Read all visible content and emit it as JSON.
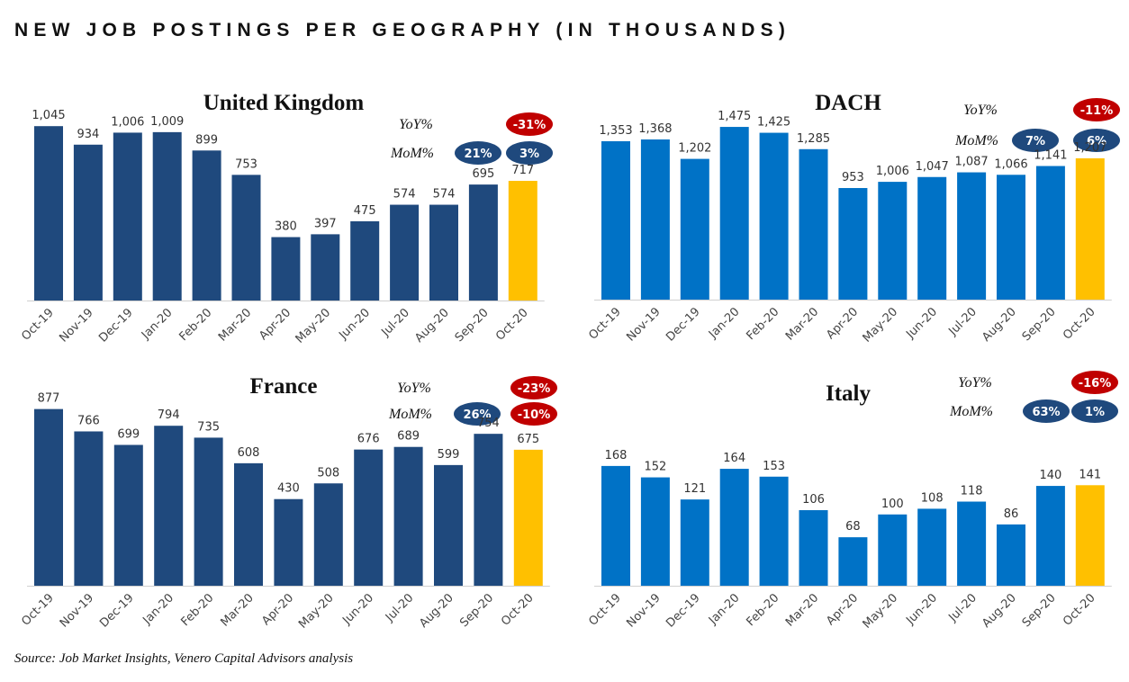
{
  "title": "NEW JOB POSTINGS PER GEOGRAPHY (IN THOUSANDS)",
  "source": "Source: Job Market Insights, Venero Capital Advisors analysis",
  "colors": {
    "dark_bar": "#1f497d",
    "light_bar": "#0072c6",
    "highlight_bar": "#ffc000",
    "negative_badge": "#c00000",
    "positive_badge": "#1f497d"
  },
  "chart_data": [
    {
      "type": "bar",
      "title": "United Kingdom",
      "categories": [
        "Oct-19",
        "Nov-19",
        "Dec-19",
        "Jan-20",
        "Feb-20",
        "Mar-20",
        "Apr-20",
        "May-20",
        "Jun-20",
        "Jul-20",
        "Aug-20",
        "Sep-20",
        "Oct-20"
      ],
      "values": [
        1045,
        934,
        1006,
        1009,
        899,
        753,
        380,
        397,
        475,
        574,
        574,
        695,
        717
      ],
      "value_labels": [
        "1,045",
        "934",
        "1,006",
        "1,009",
        "899",
        "753",
        "380",
        "397",
        "475",
        "574",
        "574",
        "695",
        "717"
      ],
      "highlight_index": 12,
      "bar_color": "#1f497d",
      "ylim": [
        0,
        1100
      ],
      "yoy_label": "YoY%",
      "mom_label": "MoM%",
      "yoy": [
        "-31%"
      ],
      "mom": [
        "21%",
        "3%"
      ]
    },
    {
      "type": "bar",
      "title": "DACH",
      "categories": [
        "Oct-19",
        "Nov-19",
        "Dec-19",
        "Jan-20",
        "Feb-20",
        "Mar-20",
        "Apr-20",
        "May-20",
        "Jun-20",
        "Jul-20",
        "Aug-20",
        "Sep-20",
        "Oct-20"
      ],
      "values": [
        1353,
        1368,
        1202,
        1475,
        1425,
        1285,
        953,
        1006,
        1047,
        1087,
        1066,
        1141,
        1207
      ],
      "value_labels": [
        "1,353",
        "1,368",
        "1,202",
        "1,475",
        "1,425",
        "1,285",
        "953",
        "1,006",
        "1,047",
        "1,087",
        "1,066",
        "1,141",
        "1,207"
      ],
      "highlight_index": 12,
      "bar_color": "#0072c6",
      "ylim": [
        0,
        1560
      ],
      "yoy_label": "YoY%",
      "mom_label": "MoM%",
      "yoy": [
        "-11%"
      ],
      "mom": [
        "7%",
        "6%"
      ]
    },
    {
      "type": "bar",
      "title": "France",
      "categories": [
        "Oct-19",
        "Nov-19",
        "Dec-19",
        "Jan-20",
        "Feb-20",
        "Mar-20",
        "Apr-20",
        "May-20",
        "Jun-20",
        "Jul-20",
        "Aug-20",
        "Sep-20",
        "Oct-20"
      ],
      "values": [
        877,
        766,
        699,
        794,
        735,
        608,
        430,
        508,
        676,
        689,
        599,
        754,
        675
      ],
      "value_labels": [
        "877",
        "766",
        "699",
        "794",
        "735",
        "608",
        "430",
        "508",
        "676",
        "689",
        "599",
        "754",
        "675"
      ],
      "highlight_index": 12,
      "bar_color": "#1f497d",
      "ylim": [
        0,
        920
      ],
      "yoy_label": "YoY%",
      "mom_label": "MoM%",
      "yoy": [
        "-23%"
      ],
      "mom": [
        "26%",
        "-10%"
      ]
    },
    {
      "type": "bar",
      "title": "Italy",
      "categories": [
        "Oct-19",
        "Nov-19",
        "Dec-19",
        "Jan-20",
        "Feb-20",
        "Mar-20",
        "Apr-20",
        "May-20",
        "Jun-20",
        "Jul-20",
        "Aug-20",
        "Sep-20",
        "Oct-20"
      ],
      "values": [
        168,
        152,
        121,
        164,
        153,
        106,
        68,
        100,
        108,
        118,
        86,
        140,
        141
      ],
      "value_labels": [
        "168",
        "152",
        "121",
        "164",
        "153",
        "106",
        "68",
        "100",
        "108",
        "118",
        "86",
        "140",
        "141"
      ],
      "highlight_index": 12,
      "bar_color": "#0072c6",
      "ylim": [
        0,
        260
      ],
      "yoy_label": "YoY%",
      "mom_label": "MoM%",
      "yoy": [
        "-16%"
      ],
      "mom": [
        "63%",
        "1%"
      ]
    }
  ]
}
